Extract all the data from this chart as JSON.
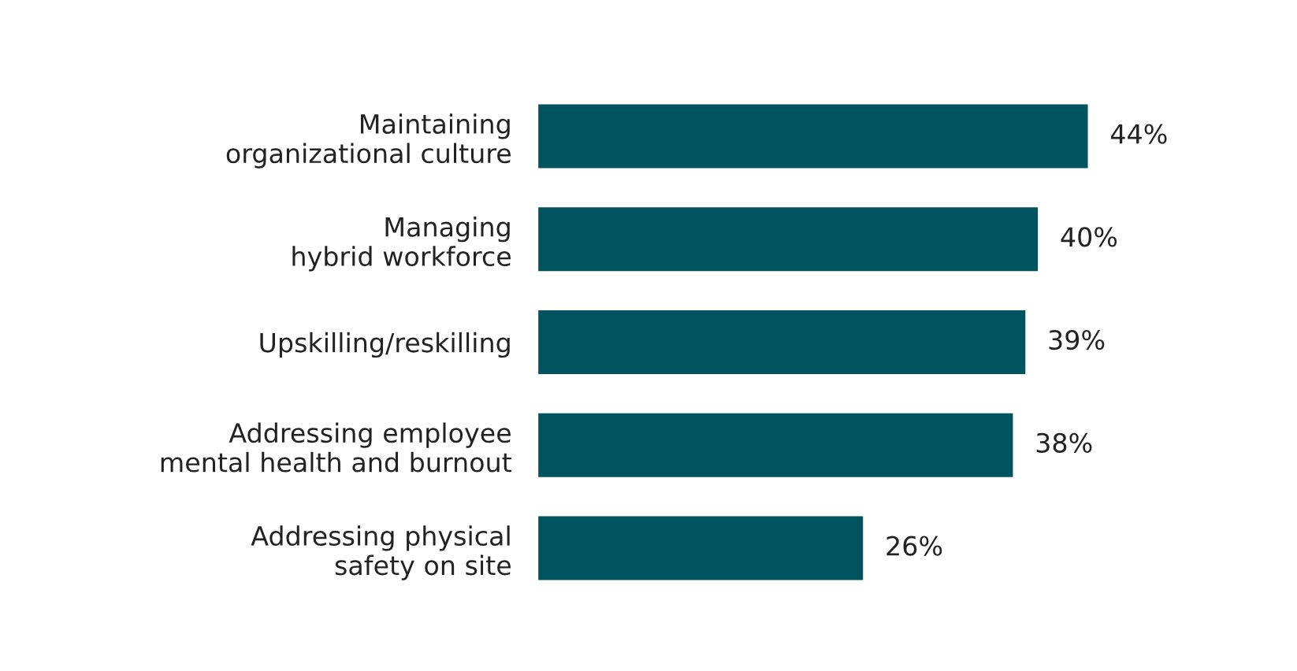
{
  "chart_data": {
    "type": "bar",
    "orientation": "horizontal",
    "categories": [
      "Maintaining\norganizational culture",
      "Managing\nhybrid workforce",
      "Upskilling/reskilling",
      "Addressing employee\nmental health and burnout",
      "Addressing physical\nsafety on site"
    ],
    "values": [
      44,
      40,
      39,
      38,
      26
    ],
    "value_labels": [
      "44%",
      "40%",
      "39%",
      "38%",
      "26%"
    ],
    "color": "#00535f",
    "grid": false,
    "legend": false,
    "tick_labels": "y"
  }
}
